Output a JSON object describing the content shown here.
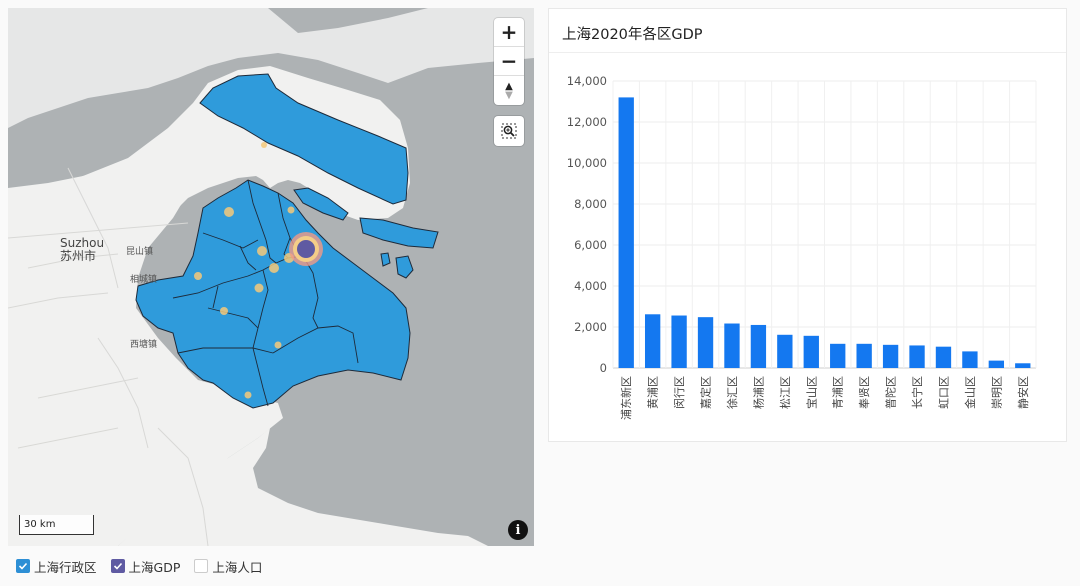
{
  "map": {
    "labels": {
      "suzhou_en": "Suzhou",
      "suzhou_cn": "苏州市",
      "town_1": "昆山镇",
      "town_2": "相城镇",
      "town_3": "西塘镇"
    },
    "controls": {
      "zoom_in": "+",
      "zoom_out": "−",
      "compass": "▲"
    },
    "scale_label": "30 km",
    "info_label": "i",
    "colors": {
      "land": "#f1f1f0",
      "water": "#aeb2b4",
      "district_fill": "#2f9bdb",
      "district_stroke": "#1d2a3a",
      "gdp_bubble": "#5f5aa2",
      "heat_glow": "#f4c97a"
    }
  },
  "legend": {
    "items": [
      {
        "label": "上海行政区",
        "checked": true,
        "color": "#2d8fd5"
      },
      {
        "label": "上海GDP",
        "checked": true,
        "color": "#5f5aa2"
      },
      {
        "label": "上海人口",
        "checked": false,
        "color": "#ffffff"
      }
    ]
  },
  "chart_card": {
    "title": "上海2020年各区GDP"
  },
  "chart_data": {
    "type": "bar",
    "title": "上海2020年各区GDP",
    "categories": [
      "浦东新区",
      "黄浦区",
      "闵行区",
      "嘉定区",
      "徐汇区",
      "杨浦区",
      "松江区",
      "宝山区",
      "青浦区",
      "奉贤区",
      "普陀区",
      "长宁区",
      "虹口区",
      "金山区",
      "崇明区",
      "静安区"
    ],
    "values": [
      13200,
      2620,
      2560,
      2480,
      2170,
      2100,
      1620,
      1570,
      1180,
      1180,
      1130,
      1100,
      1040,
      810,
      360,
      230
    ],
    "ylim": [
      0,
      14000
    ],
    "yticks": [
      0,
      2000,
      4000,
      6000,
      8000,
      10000,
      12000,
      14000
    ],
    "ytick_labels": [
      "0",
      "2,000",
      "4,000",
      "6,000",
      "8,000",
      "10,000",
      "12,000",
      "14,000"
    ],
    "grid": true,
    "bar_color": "#1478f0"
  }
}
